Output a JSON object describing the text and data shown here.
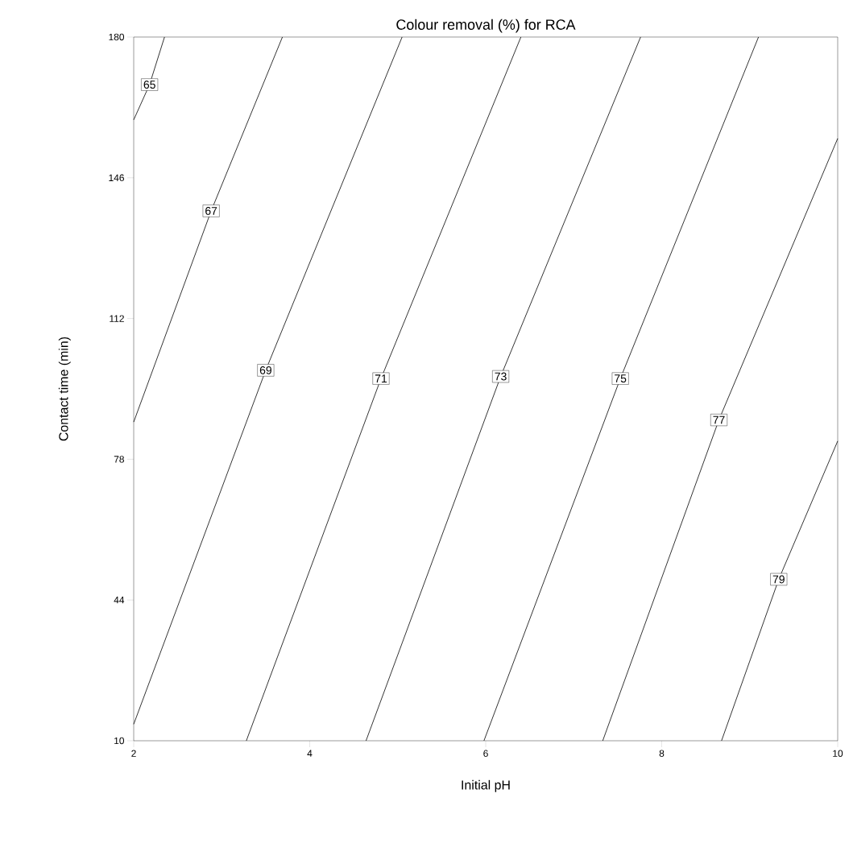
{
  "chart_data": {
    "type": "line",
    "title": "Colour removal (%) for RCA",
    "xlabel": "Initial pH",
    "ylabel": "Contact time (min)",
    "xlim": [
      2,
      10
    ],
    "xticks": [
      2,
      4,
      6,
      8,
      10
    ],
    "ylim": [
      10,
      180
    ],
    "yticks": [
      10,
      44,
      78,
      112,
      146,
      180
    ],
    "marker": "none",
    "line_style": "solid",
    "grid": false,
    "legend": false,
    "series": [
      {
        "name": "65",
        "color": "#000000",
        "x": [
          2,
          2.18,
          2.35
        ],
        "values": [
          160,
          168.5,
          180
        ]
      },
      {
        "name": "67",
        "color": "#000000",
        "x": [
          2,
          2.88,
          3.69
        ],
        "values": [
          87,
          138,
          180
        ]
      },
      {
        "name": "69",
        "color": "#000000",
        "x": [
          2,
          3.5,
          5.05
        ],
        "values": [
          14,
          99.5,
          180
        ]
      },
      {
        "name": "71",
        "color": "#000000",
        "x": [
          3.28,
          4.81,
          6.4
        ],
        "values": [
          10,
          97.5,
          180
        ]
      },
      {
        "name": "73",
        "color": "#000000",
        "x": [
          4.64,
          6.17,
          7.76
        ],
        "values": [
          10,
          98,
          180
        ]
      },
      {
        "name": "75",
        "color": "#000000",
        "x": [
          5.98,
          7.53,
          9.1
        ],
        "values": [
          10,
          97.5,
          180
        ]
      },
      {
        "name": "77",
        "color": "#000000",
        "x": [
          7.33,
          8.65,
          10
        ],
        "values": [
          10,
          87.5,
          155.5
        ]
      },
      {
        "name": "79",
        "color": "#000000",
        "x": [
          8.68,
          9.33,
          10
        ],
        "values": [
          10,
          49,
          82.4
        ]
      }
    ]
  }
}
